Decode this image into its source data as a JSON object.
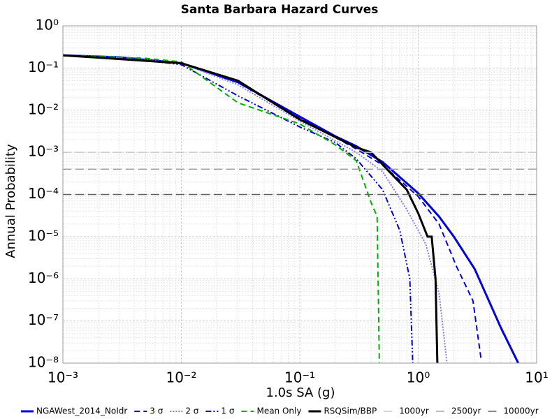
{
  "chart_data": {
    "type": "line",
    "title": "Santa Barbara Hazard Curves",
    "xlabel": "1.0s SA (g)",
    "ylabel": "Annual Probability",
    "xscale": "log",
    "yscale": "log",
    "grid": true,
    "legend": "bottom",
    "xlim": [
      0.001,
      10
    ],
    "ylim": [
      1e-08,
      1
    ],
    "xticks": [
      {
        "value": 0.001,
        "label": "10⁻³"
      },
      {
        "value": 0.01,
        "label": "10⁻²"
      },
      {
        "value": 0.1,
        "label": "10⁻¹"
      },
      {
        "value": 1,
        "label": "10⁰"
      },
      {
        "value": 10,
        "label": "10¹"
      }
    ],
    "yticks": [
      {
        "value": 1e-08,
        "label": "10⁻⁸"
      },
      {
        "value": 1e-07,
        "label": "10⁻⁷"
      },
      {
        "value": 1e-06,
        "label": "10⁻⁶"
      },
      {
        "value": 1e-05,
        "label": "10⁻⁵"
      },
      {
        "value": 0.0001,
        "label": "10⁻⁴"
      },
      {
        "value": 0.001,
        "label": "10⁻³"
      },
      {
        "value": 0.01,
        "label": "10⁻²"
      },
      {
        "value": 0.1,
        "label": "10⁻¹"
      },
      {
        "value": 1,
        "label": "10⁰"
      }
    ],
    "series": [
      {
        "name": "NGAWest_2014_NoIdr",
        "color": "#0000e0",
        "width": 3,
        "dash": "solid",
        "x": [
          0.001,
          0.003,
          0.01,
          0.03,
          0.1,
          0.2,
          0.3,
          0.5,
          1,
          1.5,
          2,
          3,
          5,
          7
        ],
        "values": [
          0.2,
          0.18,
          0.13,
          0.046,
          0.007,
          0.0024,
          0.0014,
          0.00059,
          0.000107,
          3e-05,
          1e-05,
          1.7e-06,
          6.8e-08,
          1e-08
        ]
      },
      {
        "name": "3 σ",
        "color": "#0000e0",
        "width": 2,
        "dash": "dashed",
        "x": [
          0.001,
          0.003,
          0.01,
          0.03,
          0.1,
          0.3,
          0.5,
          1,
          1.5,
          2.1,
          2.9,
          3.4
        ],
        "values": [
          0.2,
          0.18,
          0.13,
          0.045,
          0.0065,
          0.0012,
          0.0005,
          9e-05,
          2e-05,
          2e-06,
          3e-07,
          1.2e-08
        ]
      },
      {
        "name": "2 σ",
        "color": "#8080f0",
        "width": 2,
        "dash": "dotted",
        "x": [
          0.001,
          0.003,
          0.01,
          0.03,
          0.1,
          0.3,
          0.5,
          0.8,
          1.16,
          1.5,
          1.75
        ],
        "values": [
          0.2,
          0.18,
          0.13,
          0.04,
          0.0055,
          0.001,
          0.00035,
          4.4e-05,
          6.6e-06,
          4.6e-07,
          1e-08
        ]
      },
      {
        "name": "1 σ",
        "color": "#0000d0",
        "width": 2,
        "dash": "dashdot",
        "x": [
          0.001,
          0.003,
          0.01,
          0.03,
          0.1,
          0.2,
          0.3,
          0.5,
          0.7,
          0.85,
          0.9
        ],
        "values": [
          0.2,
          0.18,
          0.12,
          0.022,
          0.004,
          0.0017,
          0.0007,
          0.00013,
          1.4e-05,
          1e-06,
          1e-08
        ]
      },
      {
        "name": "Mean Only",
        "color": "#00b000",
        "width": 2,
        "dash": "dashed",
        "x": [
          0.001,
          0.005,
          0.01,
          0.03,
          0.1,
          0.2,
          0.3,
          0.4,
          0.45,
          0.47
        ],
        "values": [
          0.2,
          0.17,
          0.14,
          0.015,
          0.0047,
          0.0015,
          0.00063,
          6.5e-05,
          3e-05,
          1e-08
        ]
      },
      {
        "name": "RSQSim/BBP",
        "color": "#000000",
        "width": 3,
        "dash": "solid",
        "x": [
          0.001,
          0.01,
          0.03,
          0.1,
          0.3,
          0.4,
          0.6,
          0.8,
          1,
          1.2,
          1.3,
          1.4,
          1.45
        ],
        "values": [
          0.2,
          0.13,
          0.05,
          0.006,
          0.0013,
          0.001,
          0.0003,
          0.00013,
          3.6e-05,
          1e-05,
          1e-05,
          1e-06,
          1e-08
        ]
      },
      {
        "name": "1000yr",
        "color": "#c8c8c8",
        "width": 1.5,
        "dash": "longdash",
        "x": [
          0.001,
          10
        ],
        "values": [
          0.001,
          0.001
        ]
      },
      {
        "name": "2500yr",
        "color": "#a0a0a0",
        "width": 1.5,
        "dash": "longdash",
        "x": [
          0.001,
          10
        ],
        "values": [
          0.0004,
          0.0004
        ]
      },
      {
        "name": "10000yr",
        "color": "#606060",
        "width": 1.5,
        "dash": "longdash",
        "x": [
          0.001,
          10
        ],
        "values": [
          0.0001,
          0.0001
        ]
      }
    ]
  }
}
